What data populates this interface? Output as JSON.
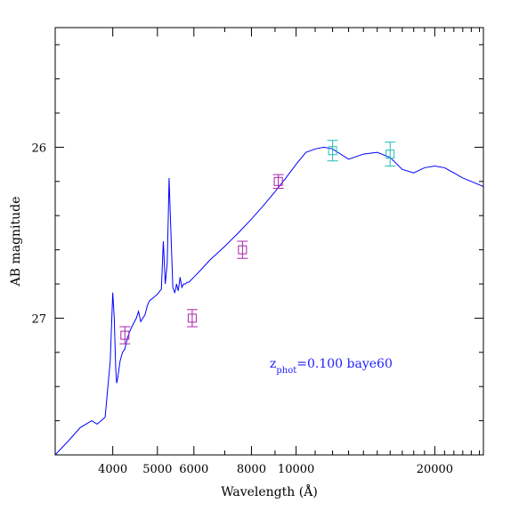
{
  "chart_data": {
    "type": "line",
    "xlabel": "Wavelength (Å)",
    "ylabel": "AB magnitude",
    "x_scale": "log",
    "xlim": [
      3000,
      25500
    ],
    "ylim": [
      27.8,
      25.3
    ],
    "y_inverted": true,
    "x_ticks": [
      4000,
      5000,
      6000,
      8000,
      10000,
      20000
    ],
    "x_tick_labels": [
      "4000",
      "5000",
      "6000",
      "8000",
      "10000",
      "20000"
    ],
    "y_ticks": [
      26,
      27
    ],
    "y_tick_labels": [
      "26",
      "27"
    ],
    "annotation": {
      "main": "z",
      "sub": "phot",
      "rest": "=0.100 baye60",
      "color": "#2020ff"
    },
    "grid": false,
    "series": [
      {
        "kind": "line",
        "color": "#0000ff",
        "x": [
          3000,
          3200,
          3400,
          3600,
          3700,
          3850,
          3950,
          4000,
          4030,
          4060,
          4080,
          4100,
          4150,
          4200,
          4250,
          4300,
          4350,
          4400,
          4500,
          4550,
          4600,
          4700,
          4750,
          4800,
          4900,
          5000,
          5100,
          5150,
          5200,
          5250,
          5280,
          5300,
          5350,
          5400,
          5450,
          5480,
          5500,
          5550,
          5600,
          5650,
          5700,
          5750,
          5800,
          5850,
          5900,
          6000,
          6200,
          6500,
          7000,
          7500,
          8000,
          8500,
          9000,
          9500,
          10000,
          10500,
          11000,
          11500,
          12000,
          13000,
          14000,
          15000,
          16000,
          17000,
          18000,
          19000,
          20000,
          21000,
          22000,
          23000,
          24000,
          25500
        ],
        "y": [
          27.8,
          27.72,
          27.64,
          27.6,
          27.62,
          27.58,
          27.25,
          26.85,
          27.0,
          27.3,
          27.38,
          27.35,
          27.25,
          27.2,
          27.18,
          27.12,
          27.08,
          27.05,
          27.0,
          26.96,
          27.02,
          26.98,
          26.93,
          26.9,
          26.88,
          26.86,
          26.83,
          26.55,
          26.8,
          26.68,
          26.4,
          26.18,
          26.5,
          26.82,
          26.85,
          26.83,
          26.8,
          26.84,
          26.76,
          26.82,
          26.8,
          26.8,
          26.79,
          26.79,
          26.78,
          26.76,
          26.72,
          26.66,
          26.58,
          26.5,
          26.42,
          26.34,
          26.26,
          26.18,
          26.1,
          26.03,
          26.01,
          26.0,
          26.01,
          26.07,
          26.04,
          26.03,
          26.06,
          26.13,
          26.15,
          26.12,
          26.11,
          26.12,
          26.15,
          26.18,
          26.2,
          26.23
        ]
      },
      {
        "kind": "errorbar",
        "color": "#aa22aa",
        "x": [
          4250,
          5950,
          7650,
          9150
        ],
        "y": [
          27.1,
          27.0,
          26.6,
          26.2
        ],
        "yerr": [
          0.05,
          0.05,
          0.05,
          0.04
        ]
      },
      {
        "kind": "errorbar",
        "color": "#22bbbb",
        "x": [
          12000,
          16000
        ],
        "y": [
          26.02,
          26.04
        ],
        "yerr": [
          0.06,
          0.07
        ]
      }
    ]
  }
}
